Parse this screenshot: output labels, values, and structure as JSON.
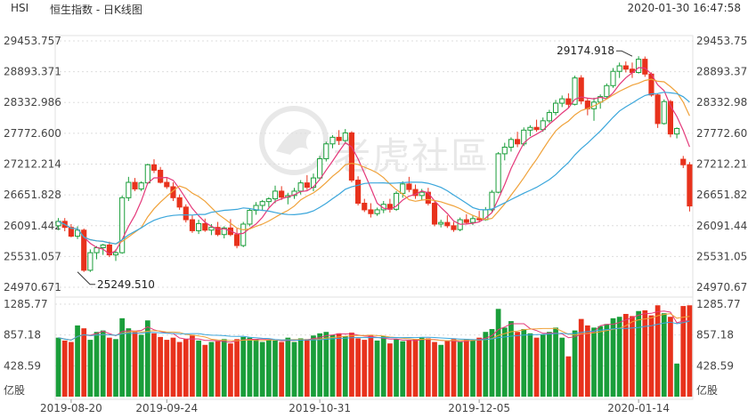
{
  "header": {
    "symbol": "HSI",
    "title": "恒生指数 - 日K线图",
    "timestamp": "2020-01-30 16:47:58"
  },
  "watermark": {
    "text": "老虎社區"
  },
  "colors": {
    "up": "#1a9e3a",
    "down": "#e8321c",
    "ma5": "#e4387a",
    "ma10": "#f0a23a",
    "ma20": "#3aa6db",
    "grid": "#dddddd",
    "axis": "#444444"
  },
  "chart_data": {
    "type": "candlestick",
    "price_axis": {
      "ylim": [
        24970.671,
        29453.757
      ],
      "tick_labels": [
        "29453.757",
        "28893.371",
        "28332.986",
        "27772.600",
        "27212.214",
        "26651.828",
        "26091.442",
        "25531.057",
        "24970.671"
      ]
    },
    "volume_axis": {
      "ylim": [
        0,
        1285.77
      ],
      "tick_labels": [
        "1285.77",
        "857.18",
        "428.59"
      ],
      "unit": "亿股"
    },
    "x_tick_labels": [
      {
        "index": 2,
        "label": "2019-08-20"
      },
      {
        "index": 17,
        "label": "2019-09-24"
      },
      {
        "index": 41,
        "label": "2019-10-31"
      },
      {
        "index": 66,
        "label": "2019-12-05"
      },
      {
        "index": 91,
        "label": "2020-01-14"
      }
    ],
    "annotations": [
      {
        "index": 3,
        "value": 25249.51,
        "text": "25249.510"
      },
      {
        "index": 90,
        "value": 29174.918,
        "text": "29174.918"
      }
    ],
    "ma_periods": [
      5,
      10,
      20
    ],
    "candles": [
      {
        "o": 26090,
        "h": 26230,
        "l": 26010,
        "c": 26170,
        "v": 820
      },
      {
        "o": 26170,
        "h": 26230,
        "l": 25990,
        "c": 26060,
        "v": 780
      },
      {
        "o": 26060,
        "h": 26120,
        "l": 25880,
        "c": 25900,
        "v": 760
      },
      {
        "o": 25900,
        "h": 26080,
        "l": 25849,
        "c": 26010,
        "v": 990
      },
      {
        "o": 26010,
        "h": 26040,
        "l": 25249.51,
        "c": 25280,
        "v": 950
      },
      {
        "o": 25280,
        "h": 25660,
        "l": 25250,
        "c": 25600,
        "v": 790
      },
      {
        "o": 25600,
        "h": 25720,
        "l": 25480,
        "c": 25690,
        "v": 900
      },
      {
        "o": 25690,
        "h": 25760,
        "l": 25560,
        "c": 25740,
        "v": 920
      },
      {
        "o": 25740,
        "h": 25800,
        "l": 25520,
        "c": 25560,
        "v": 820
      },
      {
        "o": 25560,
        "h": 25660,
        "l": 25450,
        "c": 25600,
        "v": 800
      },
      {
        "o": 25600,
        "h": 26640,
        "l": 25580,
        "c": 26600,
        "v": 1090
      },
      {
        "o": 26600,
        "h": 26980,
        "l": 26540,
        "c": 26880,
        "v": 950
      },
      {
        "o": 26880,
        "h": 26960,
        "l": 26720,
        "c": 26760,
        "v": 900
      },
      {
        "o": 26760,
        "h": 26900,
        "l": 26720,
        "c": 26870,
        "v": 860
      },
      {
        "o": 26870,
        "h": 27220,
        "l": 26850,
        "c": 27200,
        "v": 1060
      },
      {
        "o": 27200,
        "h": 27300,
        "l": 27050,
        "c": 27100,
        "v": 880
      },
      {
        "o": 27100,
        "h": 27160,
        "l": 26860,
        "c": 26880,
        "v": 830
      },
      {
        "o": 26880,
        "h": 26960,
        "l": 26760,
        "c": 26800,
        "v": 790
      },
      {
        "o": 26800,
        "h": 26880,
        "l": 26540,
        "c": 26600,
        "v": 820
      },
      {
        "o": 26600,
        "h": 26660,
        "l": 26380,
        "c": 26430,
        "v": 760
      },
      {
        "o": 26430,
        "h": 26480,
        "l": 26150,
        "c": 26200,
        "v": 800
      },
      {
        "o": 26200,
        "h": 26280,
        "l": 25960,
        "c": 26000,
        "v": 850
      },
      {
        "o": 26000,
        "h": 26200,
        "l": 25940,
        "c": 26130,
        "v": 780
      },
      {
        "o": 26130,
        "h": 26220,
        "l": 25980,
        "c": 26010,
        "v": 720
      },
      {
        "o": 26010,
        "h": 26120,
        "l": 25920,
        "c": 26060,
        "v": 760
      },
      {
        "o": 26060,
        "h": 26160,
        "l": 25900,
        "c": 25930,
        "v": 770
      },
      {
        "o": 25930,
        "h": 26080,
        "l": 25860,
        "c": 26050,
        "v": 800
      },
      {
        "o": 26050,
        "h": 26210,
        "l": 25900,
        "c": 25930,
        "v": 740
      },
      {
        "o": 25930,
        "h": 26040,
        "l": 25680,
        "c": 25730,
        "v": 800
      },
      {
        "o": 25730,
        "h": 26160,
        "l": 25700,
        "c": 26120,
        "v": 830
      },
      {
        "o": 26120,
        "h": 26400,
        "l": 26080,
        "c": 26370,
        "v": 820
      },
      {
        "o": 26370,
        "h": 26520,
        "l": 26290,
        "c": 26460,
        "v": 800
      },
      {
        "o": 26460,
        "h": 26560,
        "l": 26360,
        "c": 26530,
        "v": 760
      },
      {
        "o": 26530,
        "h": 26610,
        "l": 26430,
        "c": 26580,
        "v": 790
      },
      {
        "o": 26580,
        "h": 26820,
        "l": 26500,
        "c": 26720,
        "v": 780
      },
      {
        "o": 26720,
        "h": 26810,
        "l": 26560,
        "c": 26610,
        "v": 760
      },
      {
        "o": 26610,
        "h": 26690,
        "l": 26480,
        "c": 26640,
        "v": 820
      },
      {
        "o": 26640,
        "h": 26780,
        "l": 26580,
        "c": 26720,
        "v": 760
      },
      {
        "o": 26720,
        "h": 26920,
        "l": 26660,
        "c": 26870,
        "v": 810
      },
      {
        "o": 26870,
        "h": 27010,
        "l": 26740,
        "c": 26790,
        "v": 800
      },
      {
        "o": 26790,
        "h": 27040,
        "l": 26720,
        "c": 26960,
        "v": 850
      },
      {
        "o": 26960,
        "h": 27360,
        "l": 26920,
        "c": 27310,
        "v": 880
      },
      {
        "o": 27310,
        "h": 27620,
        "l": 27260,
        "c": 27580,
        "v": 900
      },
      {
        "o": 27580,
        "h": 27740,
        "l": 27500,
        "c": 27700,
        "v": 860
      },
      {
        "o": 27700,
        "h": 27830,
        "l": 27560,
        "c": 27640,
        "v": 880
      },
      {
        "o": 27640,
        "h": 27850,
        "l": 27580,
        "c": 27780,
        "v": 840
      },
      {
        "o": 27780,
        "h": 27810,
        "l": 26880,
        "c": 26920,
        "v": 890
      },
      {
        "o": 26920,
        "h": 26990,
        "l": 26460,
        "c": 26500,
        "v": 810
      },
      {
        "o": 26500,
        "h": 26580,
        "l": 26340,
        "c": 26380,
        "v": 790
      },
      {
        "o": 26380,
        "h": 26500,
        "l": 26240,
        "c": 26310,
        "v": 850
      },
      {
        "o": 26310,
        "h": 26420,
        "l": 26270,
        "c": 26380,
        "v": 780
      },
      {
        "o": 26380,
        "h": 26540,
        "l": 26320,
        "c": 26480,
        "v": 840
      },
      {
        "o": 26480,
        "h": 26580,
        "l": 26330,
        "c": 26390,
        "v": 740
      },
      {
        "o": 26390,
        "h": 26720,
        "l": 26360,
        "c": 26680,
        "v": 800
      },
      {
        "o": 26680,
        "h": 26900,
        "l": 26600,
        "c": 26850,
        "v": 770
      },
      {
        "o": 26850,
        "h": 26980,
        "l": 26700,
        "c": 26750,
        "v": 780
      },
      {
        "o": 26750,
        "h": 26840,
        "l": 26580,
        "c": 26640,
        "v": 800
      },
      {
        "o": 26640,
        "h": 26760,
        "l": 26560,
        "c": 26700,
        "v": 820
      },
      {
        "o": 26700,
        "h": 26780,
        "l": 26460,
        "c": 26500,
        "v": 810
      },
      {
        "o": 26500,
        "h": 26560,
        "l": 26080,
        "c": 26120,
        "v": 760
      },
      {
        "o": 26120,
        "h": 26200,
        "l": 26060,
        "c": 26150,
        "v": 720
      },
      {
        "o": 26150,
        "h": 26280,
        "l": 26050,
        "c": 26090,
        "v": 780
      },
      {
        "o": 26090,
        "h": 26160,
        "l": 25980,
        "c": 26020,
        "v": 800
      },
      {
        "o": 26020,
        "h": 26240,
        "l": 25990,
        "c": 26200,
        "v": 760
      },
      {
        "o": 26200,
        "h": 26300,
        "l": 26120,
        "c": 26150,
        "v": 800
      },
      {
        "o": 26150,
        "h": 26280,
        "l": 26100,
        "c": 26220,
        "v": 780
      },
      {
        "o": 26220,
        "h": 26360,
        "l": 26160,
        "c": 26200,
        "v": 820
      },
      {
        "o": 26200,
        "h": 26430,
        "l": 26180,
        "c": 26380,
        "v": 900
      },
      {
        "o": 26380,
        "h": 26740,
        "l": 26340,
        "c": 26700,
        "v": 940
      },
      {
        "o": 26700,
        "h": 27430,
        "l": 26680,
        "c": 27400,
        "v": 1220
      },
      {
        "o": 27400,
        "h": 27600,
        "l": 27280,
        "c": 27520,
        "v": 960
      },
      {
        "o": 27520,
        "h": 27700,
        "l": 27440,
        "c": 27660,
        "v": 1050
      },
      {
        "o": 27660,
        "h": 27800,
        "l": 27520,
        "c": 27580,
        "v": 900
      },
      {
        "o": 27580,
        "h": 27880,
        "l": 27540,
        "c": 27830,
        "v": 940
      },
      {
        "o": 27830,
        "h": 27920,
        "l": 27720,
        "c": 27880,
        "v": 880
      },
      {
        "o": 27880,
        "h": 28020,
        "l": 27800,
        "c": 27840,
        "v": 820
      },
      {
        "o": 27840,
        "h": 28060,
        "l": 27800,
        "c": 28000,
        "v": 860
      },
      {
        "o": 28000,
        "h": 28200,
        "l": 27960,
        "c": 28150,
        "v": 900
      },
      {
        "o": 28150,
        "h": 28380,
        "l": 28100,
        "c": 28320,
        "v": 960
      },
      {
        "o": 28320,
        "h": 28460,
        "l": 28250,
        "c": 28400,
        "v": 820
      },
      {
        "o": 28400,
        "h": 28500,
        "l": 28240,
        "c": 28300,
        "v": 560
      },
      {
        "o": 28300,
        "h": 28820,
        "l": 28280,
        "c": 28780,
        "v": 920
      },
      {
        "o": 28780,
        "h": 28830,
        "l": 28300,
        "c": 28360,
        "v": 1080
      },
      {
        "o": 28360,
        "h": 28410,
        "l": 28100,
        "c": 28220,
        "v": 990
      },
      {
        "o": 28220,
        "h": 28420,
        "l": 28000,
        "c": 28340,
        "v": 960
      },
      {
        "o": 28340,
        "h": 28480,
        "l": 28220,
        "c": 28440,
        "v": 980
      },
      {
        "o": 28440,
        "h": 28680,
        "l": 28400,
        "c": 28640,
        "v": 1010
      },
      {
        "o": 28640,
        "h": 28960,
        "l": 28600,
        "c": 28900,
        "v": 1090
      },
      {
        "o": 28900,
        "h": 29060,
        "l": 28780,
        "c": 29000,
        "v": 1110
      },
      {
        "o": 29000,
        "h": 29080,
        "l": 28880,
        "c": 28940,
        "v": 1150
      },
      {
        "o": 28940,
        "h": 29060,
        "l": 28780,
        "c": 28880,
        "v": 1120
      },
      {
        "o": 28880,
        "h": 29174.918,
        "l": 28860,
        "c": 29120,
        "v": 1190
      },
      {
        "o": 29120,
        "h": 29170,
        "l": 28800,
        "c": 28850,
        "v": 1200
      },
      {
        "o": 28850,
        "h": 28880,
        "l": 28440,
        "c": 28470,
        "v": 1130
      },
      {
        "o": 28470,
        "h": 28500,
        "l": 27870,
        "c": 27950,
        "v": 1270
      },
      {
        "o": 27950,
        "h": 28390,
        "l": 27930,
        "c": 28350,
        "v": 1160
      },
      {
        "o": 28350,
        "h": 28380,
        "l": 27700,
        "c": 27760,
        "v": 1110
      },
      {
        "o": 27760,
        "h": 27880,
        "l": 27680,
        "c": 27860,
        "v": 460
      },
      {
        "o": 27300,
        "h": 27360,
        "l": 27140,
        "c": 27200,
        "v": 1260
      },
      {
        "o": 27200,
        "h": 27250,
        "l": 26350,
        "c": 26450,
        "v": 1270
      }
    ]
  }
}
